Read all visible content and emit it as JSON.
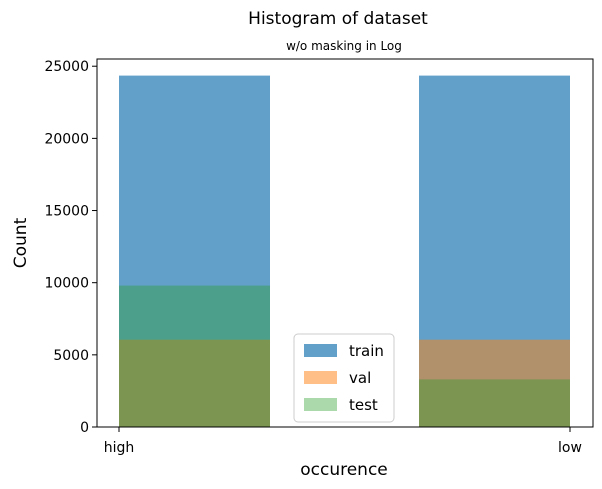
{
  "chart_data": {
    "type": "bar",
    "title": "Histogram of dataset",
    "subtitle": "w/o masking in Log",
    "xlabel": "occurence",
    "ylabel": "Count",
    "categories": [
      "high",
      "low"
    ],
    "ylim": [
      0,
      25500
    ],
    "yticks": [
      0,
      5000,
      10000,
      15000,
      20000,
      25000
    ],
    "grid": false,
    "legend_position": "lower-center",
    "series": [
      {
        "name": "train",
        "values": [
          24350,
          24350
        ],
        "color": "#1f77b4",
        "opacity": 0.7
      },
      {
        "name": "val",
        "values": [
          6050,
          6050
        ],
        "color": "#ff7f0e",
        "opacity": 0.5
      },
      {
        "name": "test",
        "values": [
          9800,
          3300
        ],
        "color": "#2ca02c",
        "opacity": 0.4
      }
    ]
  }
}
